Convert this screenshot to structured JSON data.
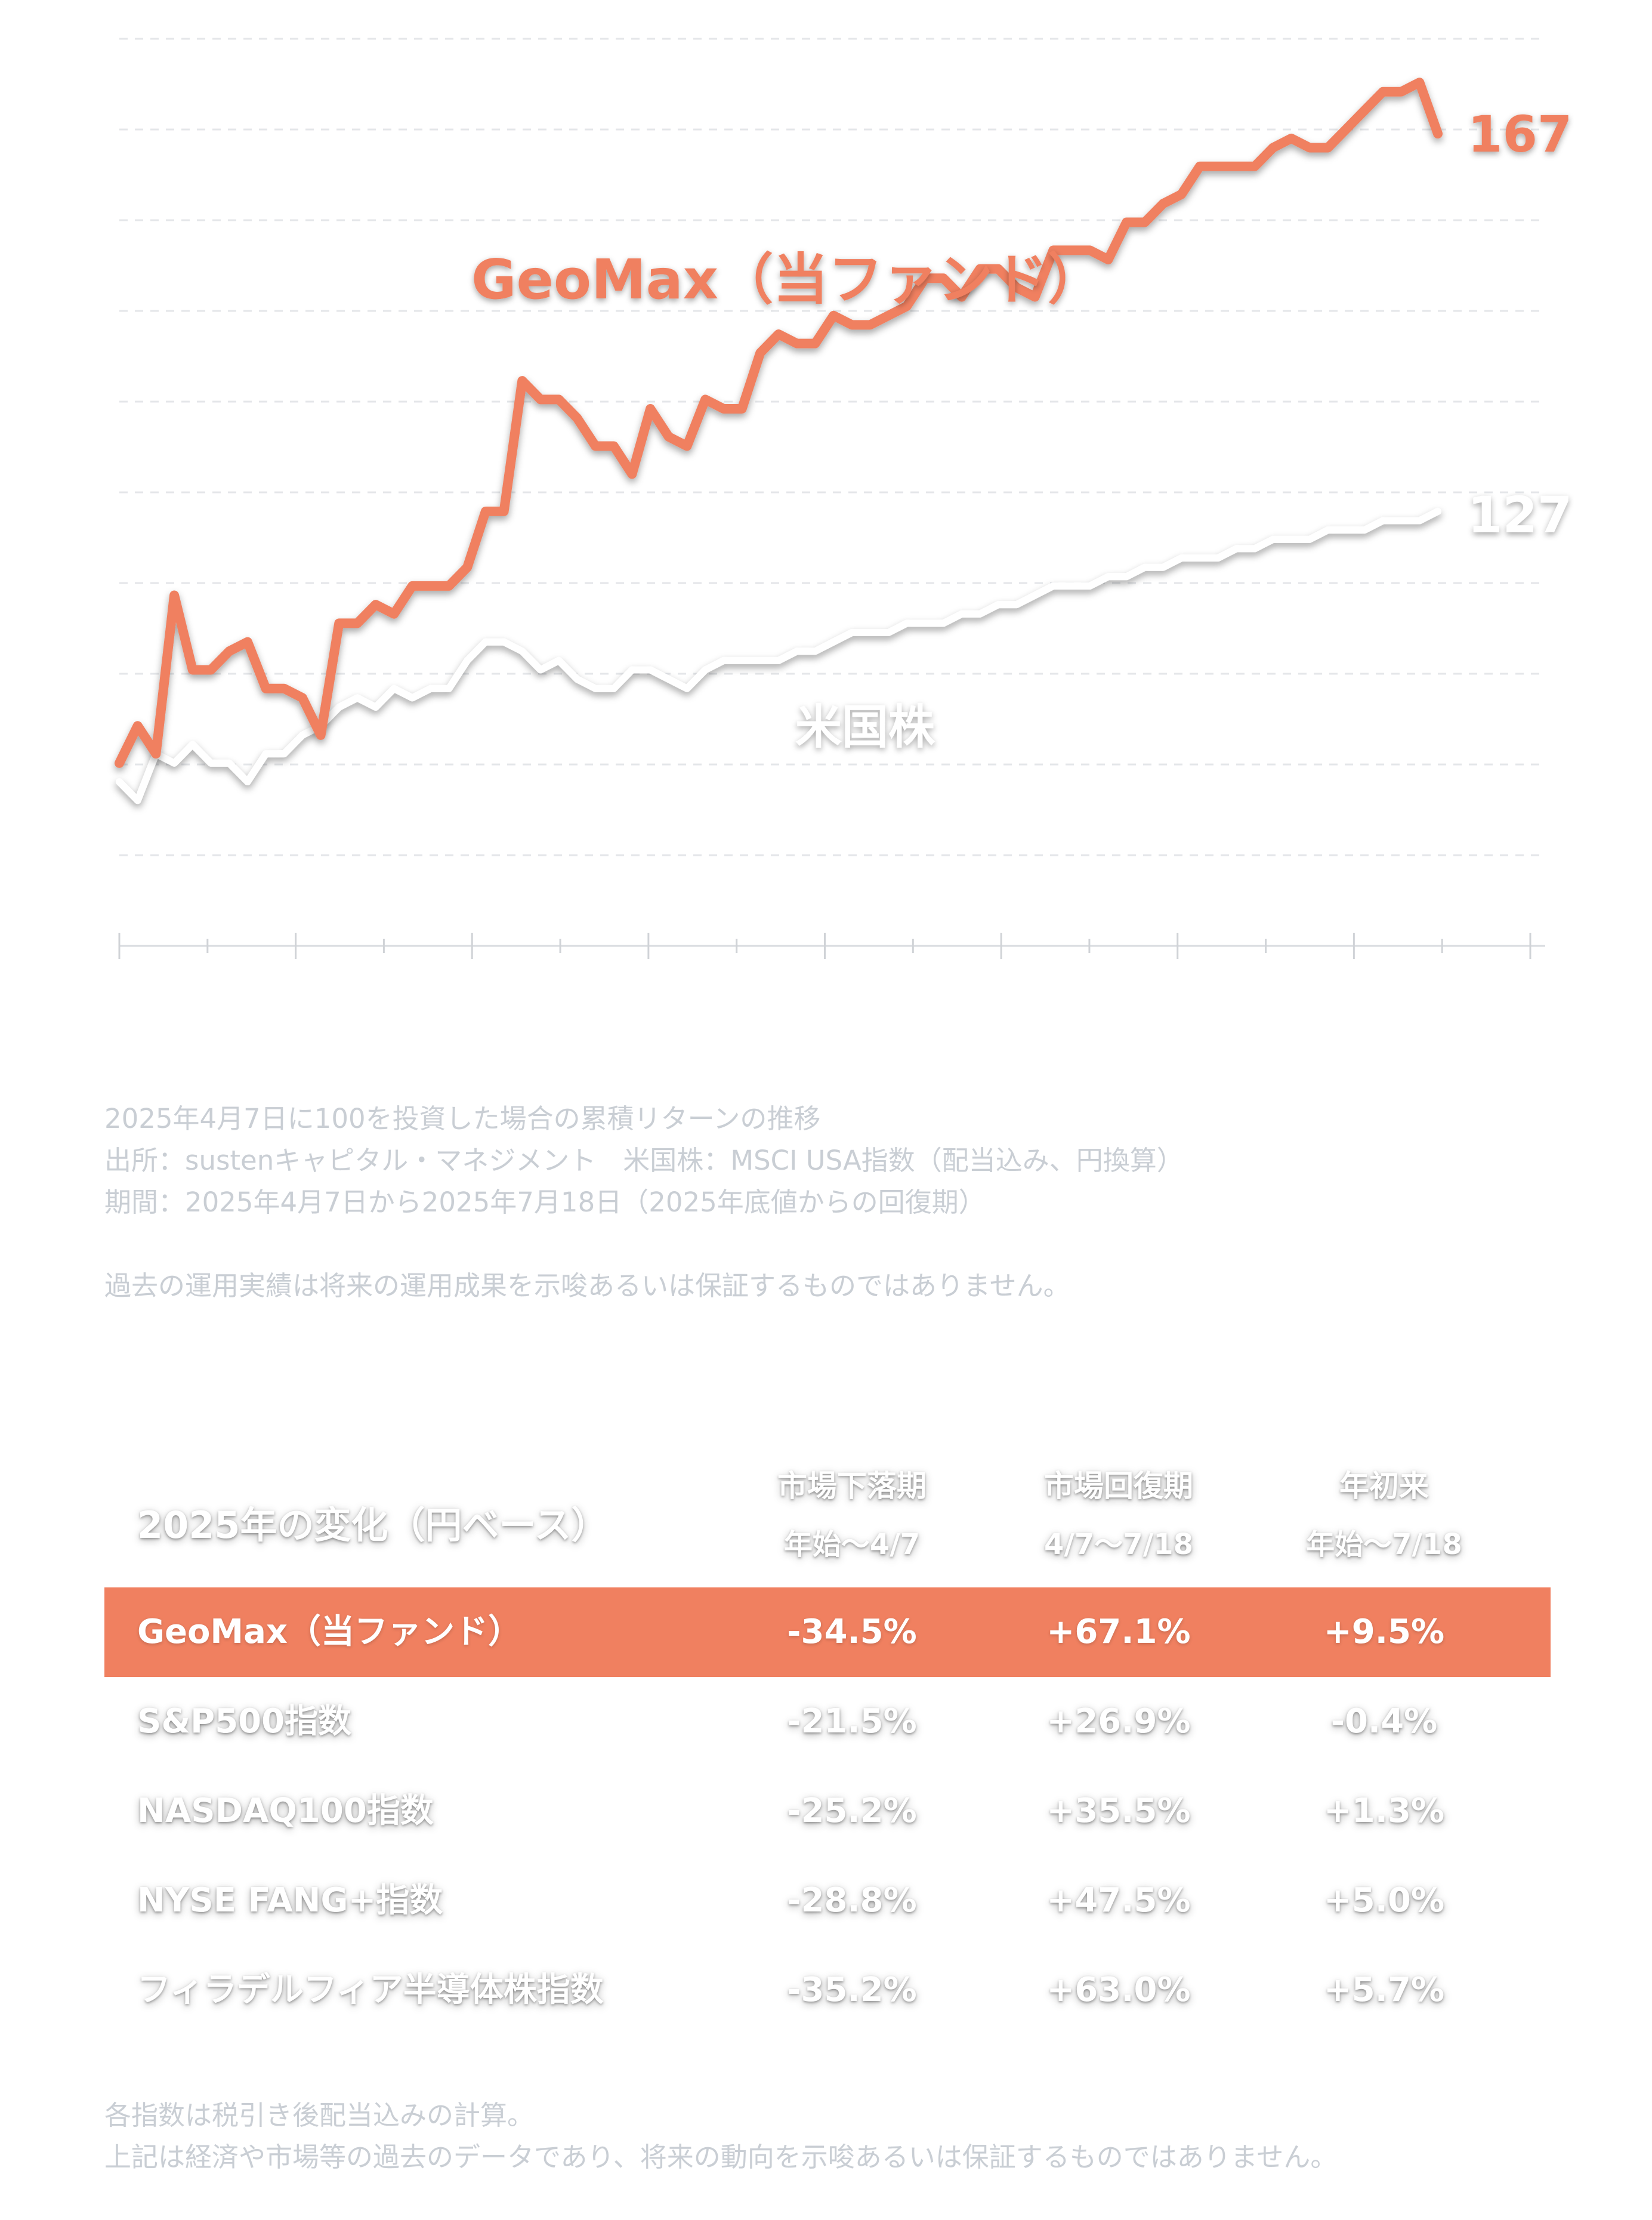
{
  "chart_data": {
    "type": "line",
    "x": [
      0,
      1,
      2,
      3,
      4,
      5,
      6,
      7,
      8,
      9,
      10,
      11,
      12,
      13,
      14,
      15,
      16,
      17,
      18,
      19,
      20,
      21,
      22,
      23,
      24,
      25,
      26,
      27,
      28,
      29,
      30,
      31,
      32,
      33,
      34,
      35,
      36,
      37,
      38,
      39,
      40,
      41,
      42,
      43,
      44,
      45,
      46,
      47,
      48,
      49,
      50,
      51,
      52,
      53,
      54,
      55,
      56,
      57,
      58,
      59,
      60,
      61,
      62,
      63,
      64,
      65,
      66,
      67,
      68,
      69,
      70,
      71,
      72
    ],
    "series": [
      {
        "name": "GeoMax（当ファンド）",
        "color": "#f08060",
        "end_label": "167",
        "values": [
          100,
          104,
          101,
          118,
          110,
          110,
          112,
          113,
          108,
          108,
          107,
          103,
          115,
          115,
          117,
          116,
          119,
          119,
          119,
          121,
          127,
          127,
          141,
          139,
          139,
          137,
          134,
          134,
          131,
          138,
          135,
          134,
          139,
          138,
          138,
          144,
          146,
          145,
          145,
          148,
          147,
          147,
          148,
          149,
          152,
          152,
          150,
          153,
          153,
          151,
          150,
          155,
          155,
          155,
          154,
          158,
          158,
          160,
          161,
          164,
          164,
          164,
          164,
          166,
          167,
          166,
          166,
          168,
          170,
          172,
          172,
          173,
          167.5
        ]
      },
      {
        "name": "米国株",
        "color": "#ffffff",
        "end_label": "127",
        "values": [
          98,
          96,
          101,
          100,
          102,
          100,
          100,
          98,
          101,
          101,
          103,
          104,
          106,
          107,
          106,
          108,
          107,
          108,
          108,
          111,
          113,
          113,
          112,
          110,
          111,
          109,
          108,
          108,
          110,
          110,
          109,
          108,
          110,
          111,
          111,
          111,
          111,
          112,
          112,
          113,
          114,
          114,
          114,
          115,
          115,
          115,
          116,
          116,
          117,
          117,
          118,
          119,
          119,
          119,
          120,
          120,
          121,
          121,
          122,
          122,
          122,
          123,
          123,
          124,
          124,
          124,
          125,
          125,
          125,
          126,
          126,
          126,
          127
        ]
      }
    ],
    "ylim": [
      90,
      178
    ],
    "grid": true,
    "x_ticks_major": 8
  },
  "notes_top": [
    "2025年4月7日に100を投資した場合の累積リターンの推移",
    "出所：sustenキャピタル・マネジメント　米国株：MSCI USA指数（配当込み、円換算）",
    "期間：2025年4月7日から2025年7月18日（2025年底値からの回復期）",
    "過去の運用実績は将来の運用成果を示唆あるいは保証するものではありません。"
  ],
  "table": {
    "title": "2025年の変化（円ベース）",
    "columns": [
      {
        "label": "市場下落期",
        "sub": "年始～4/7"
      },
      {
        "label": "市場回復期",
        "sub": "4/7～7/18"
      },
      {
        "label": "年初来",
        "sub": "年始～7/18"
      }
    ],
    "rows": [
      {
        "name": "GeoMax（当ファンド）",
        "values": [
          "-34.5%",
          "+67.1%",
          "+9.5%"
        ]
      },
      {
        "name": "S&P500指数",
        "values": [
          "-21.5%",
          "+26.9%",
          "-0.4%"
        ]
      },
      {
        "name": "NASDAQ100指数",
        "values": [
          "-25.2%",
          "+35.5%",
          "+1.3%"
        ]
      },
      {
        "name": "NYSE FANG+指数",
        "values": [
          "-28.8%",
          "+47.5%",
          "+5.0%"
        ]
      },
      {
        "name": "フィラデルフィア半導体株指数",
        "values": [
          "-35.2%",
          "+63.0%",
          "+5.7%"
        ]
      }
    ],
    "highlight_color": "#f08060"
  },
  "notes_bottom": [
    "各指数は税引き後配当込みの計算。",
    "上記は経済や市場等の過去のデータであり、将来の動向を示唆あるいは保証するものではありません。"
  ]
}
